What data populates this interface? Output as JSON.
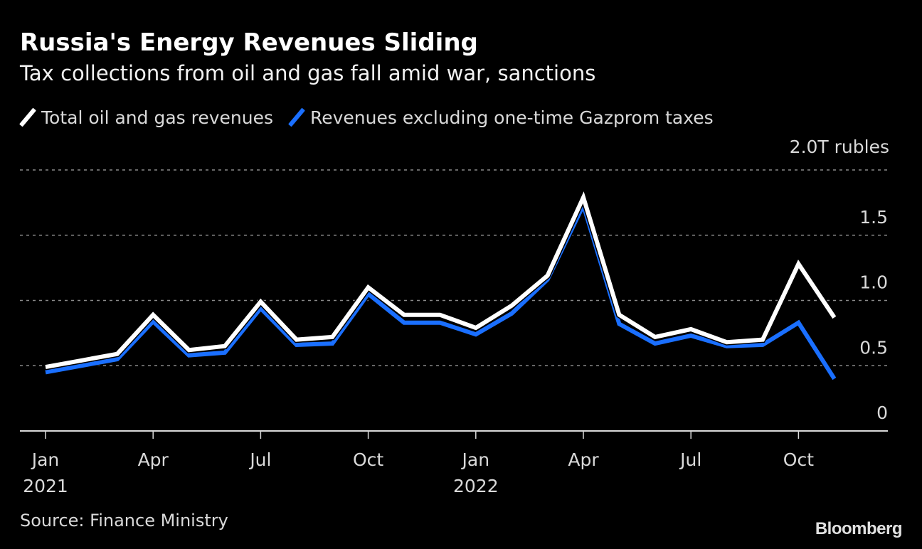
{
  "header": {
    "title": "Russia's Energy Revenues Sliding",
    "subtitle": "Tax collections from oil and gas fall amid war, sanctions"
  },
  "legend": [
    {
      "label": "Total oil and gas revenues",
      "color": "#ffffff"
    },
    {
      "label": "Revenues excluding one-time Gazprom taxes",
      "color": "#1a6fff"
    }
  ],
  "footer": {
    "source": "Source: Finance Ministry",
    "brand": "Bloomberg"
  },
  "chart_data": {
    "type": "line",
    "title": "Russia's Energy Revenues Sliding",
    "subtitle": "Tax collections from oil and gas fall amid war, sanctions",
    "xlabel": "",
    "ylabel": "2.0T rubles",
    "unit_label": "2.0T rubles",
    "ylim": [
      0,
      2.0
    ],
    "grid": true,
    "legend_position": "top-left",
    "y_ticks": [
      {
        "value": 0,
        "label": "0"
      },
      {
        "value": 0.5,
        "label": "0.5"
      },
      {
        "value": 1.0,
        "label": "1.0"
      },
      {
        "value": 1.5,
        "label": "1.5"
      },
      {
        "value": 2.0,
        "label": "2.0T rubles"
      }
    ],
    "x_ticks": [
      {
        "index": 0,
        "label": "Jan",
        "sublabel": "2021"
      },
      {
        "index": 3,
        "label": "Apr",
        "sublabel": ""
      },
      {
        "index": 6,
        "label": "Jul",
        "sublabel": ""
      },
      {
        "index": 9,
        "label": "Oct",
        "sublabel": ""
      },
      {
        "index": 12,
        "label": "Jan",
        "sublabel": "2022"
      },
      {
        "index": 15,
        "label": "Apr",
        "sublabel": ""
      },
      {
        "index": 18,
        "label": "Jul",
        "sublabel": ""
      },
      {
        "index": 21,
        "label": "Oct",
        "sublabel": ""
      }
    ],
    "x": [
      "2021-01",
      "2021-02",
      "2021-03",
      "2021-04",
      "2021-05",
      "2021-06",
      "2021-07",
      "2021-08",
      "2021-09",
      "2021-10",
      "2021-11",
      "2021-12",
      "2022-01",
      "2022-02",
      "2022-03",
      "2022-04",
      "2022-05",
      "2022-06",
      "2022-07",
      "2022-08",
      "2022-09",
      "2022-10",
      "2022-11"
    ],
    "series": [
      {
        "name": "Total oil and gas revenues",
        "color": "#ffffff",
        "values": [
          0.49,
          0.54,
          0.59,
          0.89,
          0.62,
          0.65,
          0.99,
          0.7,
          0.72,
          1.1,
          0.89,
          0.89,
          0.79,
          0.96,
          1.19,
          1.79,
          0.89,
          0.72,
          0.78,
          0.68,
          0.7,
          1.28,
          0.87
        ]
      },
      {
        "name": "Revenues excluding one-time Gazprom taxes",
        "color": "#1a6fff",
        "values": [
          0.45,
          0.5,
          0.55,
          0.84,
          0.58,
          0.6,
          0.94,
          0.66,
          0.67,
          1.05,
          0.83,
          0.83,
          0.74,
          0.9,
          1.16,
          1.73,
          0.82,
          0.67,
          0.73,
          0.65,
          0.66,
          0.83,
          0.4
        ]
      }
    ]
  }
}
